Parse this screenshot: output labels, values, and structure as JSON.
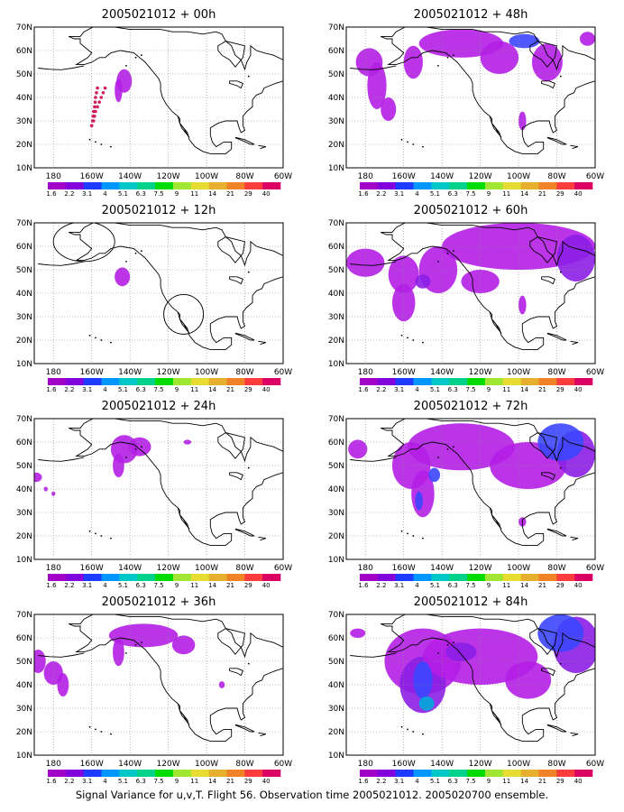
{
  "caption": "Signal Variance for u,v,T. Flight 56. Observation time 2005021012. 2005020700 ensemble.",
  "y_ticks": [
    "10N",
    "20N",
    "30N",
    "40N",
    "50N",
    "60N",
    "70N"
  ],
  "x_ticks": [
    "180",
    "160W",
    "140W",
    "120W",
    "100W",
    "80W",
    "60W"
  ],
  "colorbar": {
    "labels": [
      "1.6",
      "2.2",
      "3.1",
      "4",
      "5.1",
      "6.3",
      "7.5",
      "9",
      "11",
      "14",
      "21",
      "29",
      "40"
    ],
    "colors": [
      "#a000c8",
      "#8200dc",
      "#1e3cff",
      "#0096ff",
      "#00c8c8",
      "#00d28c",
      "#00dc00",
      "#a0e632",
      "#e6dc32",
      "#e6af2d",
      "#f08228",
      "#fa3c3c",
      "#dc0064"
    ]
  },
  "colors": {
    "purple": "#8c1ee6",
    "magenta": "#b41ee6",
    "blue": "#3c46ff",
    "cyan": "#00aadc",
    "red_dots": "#d21e5a"
  },
  "panels": [
    {
      "title": "2005021012 + 00h",
      "lead_hours": 0
    },
    {
      "title": "2005021012 + 48h",
      "lead_hours": 48
    },
    {
      "title": "2005021012 + 12h",
      "lead_hours": 12
    },
    {
      "title": "2005021012 + 60h",
      "lead_hours": 60
    },
    {
      "title": "2005021012 + 24h",
      "lead_hours": 24
    },
    {
      "title": "2005021012 + 72h",
      "lead_hours": 72
    },
    {
      "title": "2005021012 + 36h",
      "lead_hours": 36
    },
    {
      "title": "2005021012 + 84h",
      "lead_hours": 84
    }
  ]
}
